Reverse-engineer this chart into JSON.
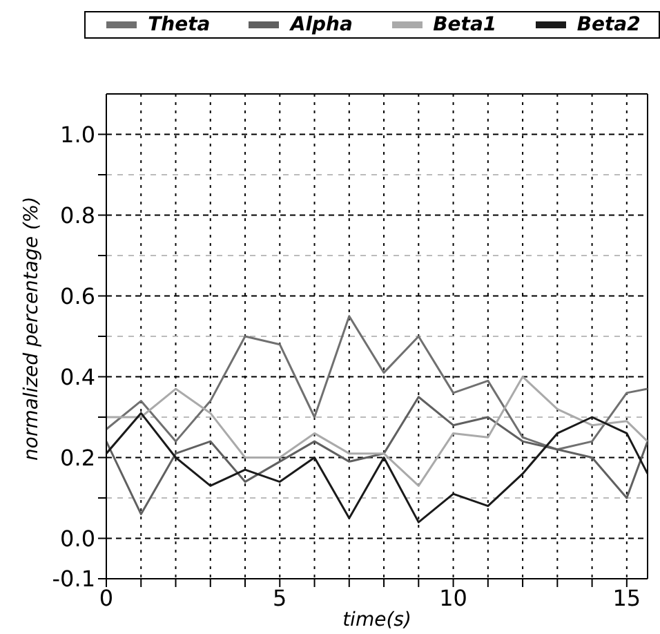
{
  "chart_data": {
    "type": "line",
    "xlabel": "time(s)",
    "ylabel": "normalized percentage (%)",
    "x": [
      0,
      1,
      2,
      3,
      4,
      5,
      6,
      7,
      8,
      9,
      10,
      11,
      12,
      13,
      14,
      15,
      15.6
    ],
    "series": [
      {
        "name": "Theta",
        "color": "#707070",
        "values": [
          0.27,
          0.34,
          0.24,
          0.34,
          0.5,
          0.48,
          0.3,
          0.55,
          0.41,
          0.5,
          0.36,
          0.39,
          0.25,
          0.22,
          0.24,
          0.36,
          0.37
        ]
      },
      {
        "name": "Alpha",
        "color": "#606060",
        "values": [
          0.24,
          0.06,
          0.21,
          0.24,
          0.14,
          0.19,
          0.24,
          0.19,
          0.21,
          0.35,
          0.28,
          0.3,
          0.24,
          0.22,
          0.2,
          0.1,
          0.24
        ]
      },
      {
        "name": "Beta1",
        "color": "#aaaaaa",
        "values": [
          0.3,
          0.3,
          0.37,
          0.31,
          0.2,
          0.2,
          0.26,
          0.21,
          0.21,
          0.13,
          0.26,
          0.25,
          0.4,
          0.32,
          0.28,
          0.29,
          0.24
        ]
      },
      {
        "name": "Beta2",
        "color": "#1a1a1a",
        "values": [
          0.21,
          0.31,
          0.2,
          0.13,
          0.17,
          0.14,
          0.2,
          0.05,
          0.2,
          0.04,
          0.11,
          0.08,
          0.16,
          0.26,
          0.3,
          0.26,
          0.16
        ]
      }
    ],
    "xlim": [
      0,
      15.6
    ],
    "xticks": [
      0,
      {
        "value": 1,
        "label": null
      },
      {
        "value": 2,
        "label": null
      },
      {
        "value": 3,
        "label": null
      },
      {
        "value": 4,
        "label": null
      },
      5,
      {
        "value": 6,
        "label": null
      },
      {
        "value": 7,
        "label": null
      },
      {
        "value": 8,
        "label": null
      },
      {
        "value": 9,
        "label": null
      },
      10,
      {
        "value": 11,
        "label": null
      },
      {
        "value": 12,
        "label": null
      },
      {
        "value": 13,
        "label": null
      },
      {
        "value": 14,
        "label": null
      },
      15
    ],
    "ylim": [
      -0.1,
      1.1
    ],
    "yticks": [
      {
        "value": -0.1,
        "label": "-0.1"
      },
      {
        "value": 0,
        "label": "0.0"
      },
      {
        "value": 0.1,
        "label": null
      },
      0.2,
      {
        "value": 0.3,
        "label": null
      },
      0.4,
      {
        "value": 0.5,
        "label": null
      },
      0.6,
      {
        "value": 0.7,
        "label": null
      },
      0.8,
      {
        "value": 0.9,
        "label": null
      },
      {
        "value": 1,
        "label": "1.0"
      }
    ],
    "grid": true,
    "legend": "top",
    "marker": "none",
    "line_style": "solid"
  }
}
